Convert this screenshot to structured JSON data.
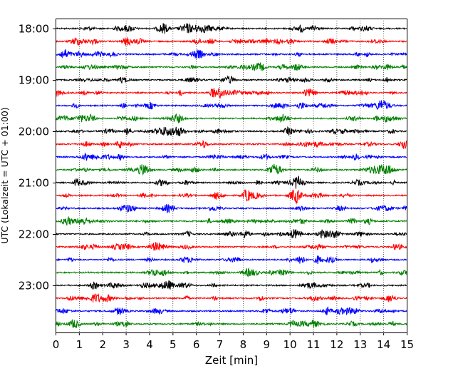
{
  "chart_data": {
    "type": "line",
    "title": "",
    "xlabel": "Zeit  [min]",
    "ylabel": "UTC (Lokalzeit = UTC + 01:00)",
    "xlim": [
      0,
      15
    ],
    "x_ticks": [
      "0",
      "1",
      "2",
      "3",
      "4",
      "5",
      "6",
      "7",
      "8",
      "9",
      "10",
      "11",
      "12",
      "13",
      "14",
      "15"
    ],
    "y_tick_labels": [
      "18:00",
      "19:00",
      "20:00",
      "21:00",
      "22:00",
      "23:00"
    ],
    "grid": "vertical dotted lines at each minute",
    "trace_interval_minutes": 15,
    "trace_start": "18:00",
    "trace_count": 24,
    "colors_cycle": [
      "#000000",
      "#ff0000",
      "#0000ff",
      "#008000"
    ],
    "traces": [
      {
        "start": "18:00",
        "color": "#000000"
      },
      {
        "start": "18:15",
        "color": "#ff0000"
      },
      {
        "start": "18:30",
        "color": "#0000ff"
      },
      {
        "start": "18:45",
        "color": "#008000"
      },
      {
        "start": "19:00",
        "color": "#000000"
      },
      {
        "start": "19:15",
        "color": "#ff0000"
      },
      {
        "start": "19:30",
        "color": "#0000ff"
      },
      {
        "start": "19:45",
        "color": "#008000"
      },
      {
        "start": "20:00",
        "color": "#000000"
      },
      {
        "start": "20:15",
        "color": "#ff0000"
      },
      {
        "start": "20:30",
        "color": "#0000ff"
      },
      {
        "start": "20:45",
        "color": "#008000"
      },
      {
        "start": "21:00",
        "color": "#000000"
      },
      {
        "start": "21:15",
        "color": "#ff0000"
      },
      {
        "start": "21:30",
        "color": "#0000ff"
      },
      {
        "start": "21:45",
        "color": "#008000"
      },
      {
        "start": "22:00",
        "color": "#000000"
      },
      {
        "start": "22:15",
        "color": "#ff0000"
      },
      {
        "start": "22:30",
        "color": "#0000ff"
      },
      {
        "start": "22:45",
        "color": "#008000"
      },
      {
        "start": "23:00",
        "color": "#000000"
      },
      {
        "start": "23:15",
        "color": "#ff0000"
      },
      {
        "start": "23:30",
        "color": "#0000ff"
      },
      {
        "start": "23:45",
        "color": "#008000"
      }
    ]
  }
}
